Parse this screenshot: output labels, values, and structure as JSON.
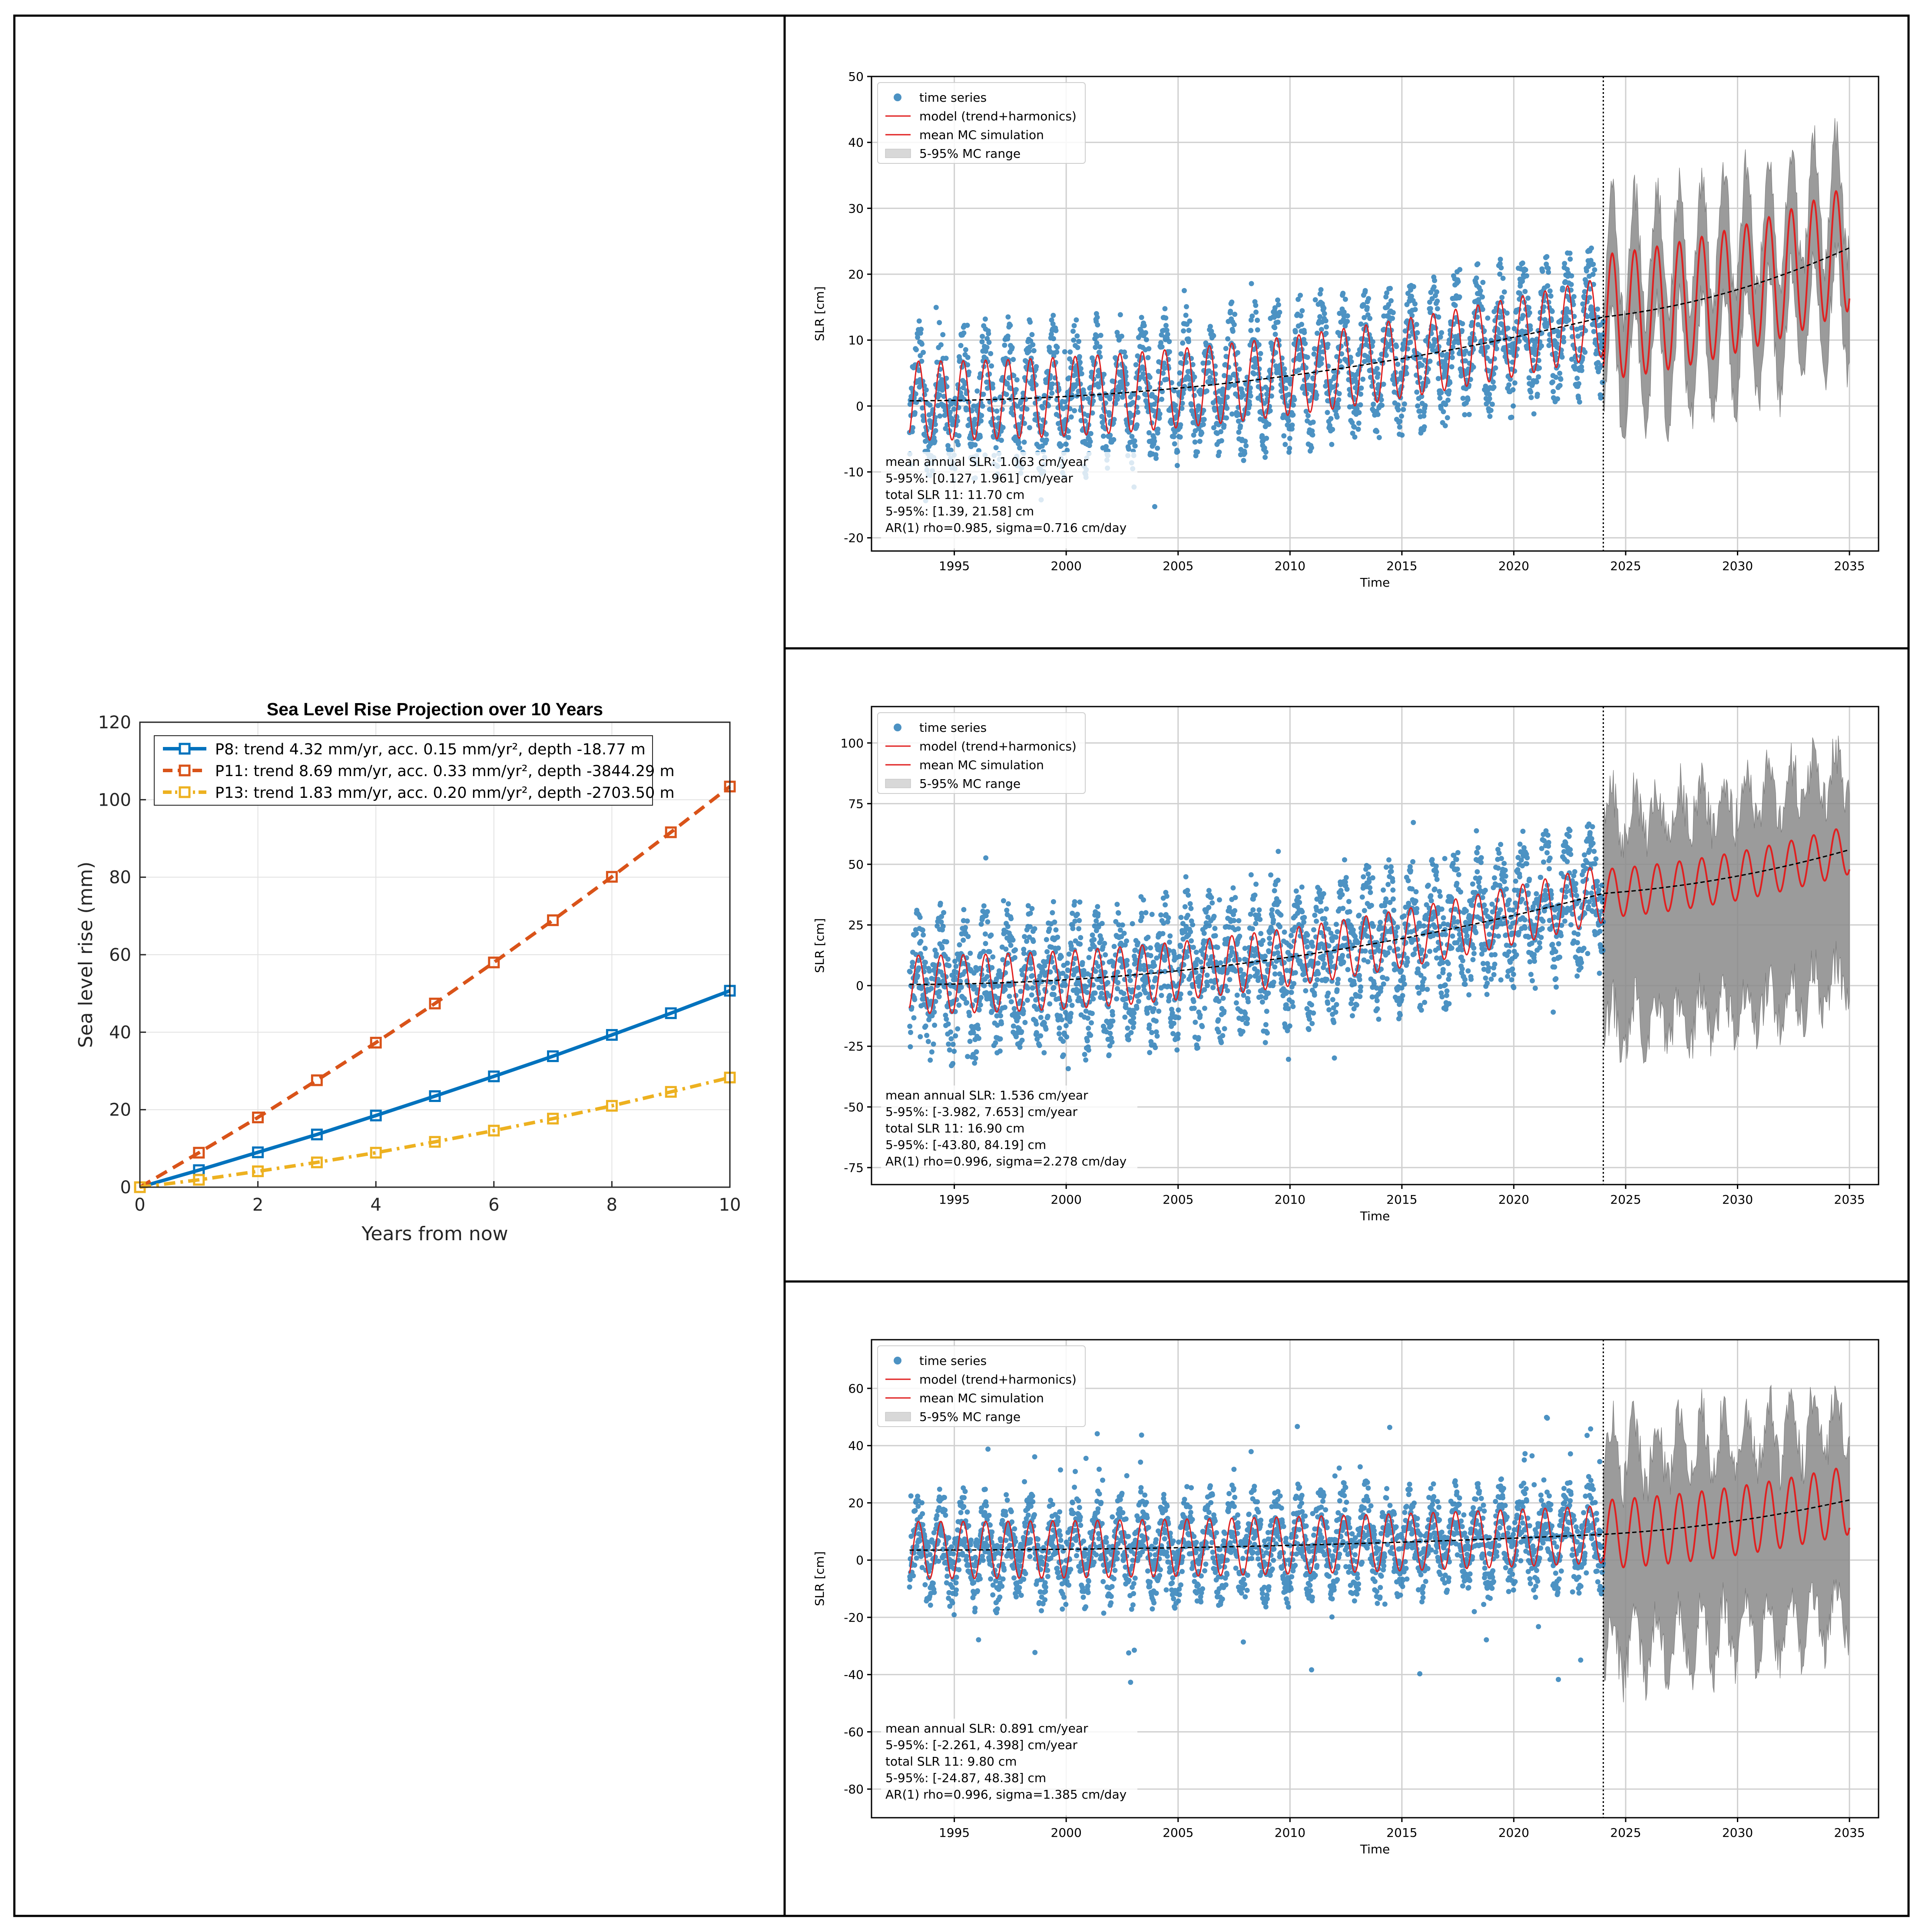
{
  "colors": {
    "frame": "#000000",
    "p8": "#0072BD",
    "p11": "#D95319",
    "p13": "#EDB120",
    "ts": "#1f77b4",
    "model": "#e02020",
    "mc_band": "#8a8a8a",
    "trend": "#000000",
    "grid": "#d0d0d0"
  },
  "chart_data": [
    {
      "id": "projection",
      "type": "line",
      "title": "Sea Level Rise Projection over 10 Years",
      "xlabel": "Years from now",
      "ylabel": "Sea level rise (mm)",
      "xlim": [
        0,
        10
      ],
      "ylim": [
        0,
        120
      ],
      "xticks": [
        0,
        2,
        4,
        6,
        8,
        10
      ],
      "yticks": [
        0,
        20,
        40,
        60,
        80,
        100,
        120
      ],
      "grid": true,
      "legend_position": "top-left",
      "x": [
        0,
        1,
        2,
        3,
        4,
        5,
        6,
        7,
        8,
        9,
        10
      ],
      "series": [
        {
          "name": "P8: trend 4.32 mm/yr, acc. 0.15 mm/yr², depth -18.77 m",
          "key": "p8",
          "style": "solid",
          "values": [
            0,
            4.4,
            9.0,
            13.6,
            18.5,
            23.5,
            28.6,
            33.8,
            39.3,
            44.9,
            50.7
          ]
        },
        {
          "name": "P11: trend 8.69 mm/yr, acc. 0.33 mm/yr², depth -3844.29 m",
          "key": "p11",
          "style": "dashed",
          "values": [
            0,
            8.9,
            18.0,
            27.6,
            37.3,
            47.4,
            58.0,
            68.9,
            80.1,
            91.6,
            103.4
          ]
        },
        {
          "name": "P13: trend 1.83 mm/yr, acc. 0.20 mm/yr², depth -2703.50 m",
          "key": "p13",
          "style": "dashdot",
          "values": [
            0,
            1.9,
            4.1,
            6.4,
            8.9,
            11.7,
            14.6,
            17.7,
            21.0,
            24.6,
            28.3
          ]
        }
      ]
    },
    {
      "id": "p8_ts",
      "type": "line",
      "xlabel": "Time",
      "ylabel": "SLR [cm]",
      "xlim": [
        1991.3,
        2036.3
      ],
      "ylim": [
        -22,
        50
      ],
      "xticks": [
        1995,
        2000,
        2005,
        2010,
        2015,
        2020,
        2025,
        2030,
        2035
      ],
      "yticks": [
        -20,
        -10,
        0,
        10,
        20,
        30,
        40,
        50
      ],
      "grid": true,
      "legend_position": "top-left",
      "legend": [
        "time series",
        "model (trend+harmonics)",
        "mean MC simulation",
        "5-95% MC range"
      ],
      "forecast_start": 2024.0,
      "end_year": 2035,
      "obs": {
        "start": 1993.0,
        "trend_start": 0.8,
        "trend_end": 13.5,
        "amp": 6.5,
        "noise": 6.0,
        "spike": 10
      },
      "model": {
        "amp": 6.0
      },
      "mc": {
        "mean_start": 13.5,
        "mean_end": 24.0,
        "amp": 9.5,
        "lower_width": 9.0,
        "upper_width": 9.0,
        "jitter": 3.0
      },
      "stats": [
        "mean annual SLR: 1.063 cm/year",
        "5-95%: [0.127, 1.961] cm/year",
        "total SLR 11: 11.70 cm",
        "5-95%: [1.39, 21.58] cm",
        "AR(1) rho=0.985, sigma=0.716 cm/day"
      ]
    },
    {
      "id": "p11_ts",
      "type": "line",
      "xlabel": "Time",
      "ylabel": "SLR [cm]",
      "xlim": [
        1991.3,
        2036.3
      ],
      "ylim": [
        -82,
        115
      ],
      "xticks": [
        1995,
        2000,
        2005,
        2010,
        2015,
        2020,
        2025,
        2030,
        2035
      ],
      "yticks": [
        -75,
        -50,
        -25,
        0,
        25,
        50,
        75,
        100
      ],
      "grid": true,
      "legend_position": "top-left",
      "legend": [
        "time series",
        "model (trend+harmonics)",
        "mean MC simulation",
        "5-95% MC range"
      ],
      "forecast_start": 2024.0,
      "end_year": 2035,
      "obs": {
        "start": 1993.0,
        "trend_start": 0.5,
        "trend_end": 38.0,
        "amp": 14.0,
        "noise": 20.0,
        "spike": 30
      },
      "model": {
        "amp": 12.0
      },
      "mc": {
        "mean_start": 38.0,
        "mean_end": 56.0,
        "amp": 10.0,
        "lower_width": 55.0,
        "upper_width": 32.0,
        "jitter": 10.0
      },
      "stats": [
        "mean annual SLR: 1.536 cm/year",
        "5-95%: [-3.982, 7.653] cm/year",
        "total SLR 11: 16.90 cm",
        "5-95%: [-43.80, 84.19] cm",
        "AR(1) rho=0.996, sigma=2.278 cm/day"
      ]
    },
    {
      "id": "p13_ts",
      "type": "line",
      "xlabel": "Time",
      "ylabel": "SLR [cm]",
      "xlim": [
        1991.3,
        2036.3
      ],
      "ylim": [
        -90,
        77
      ],
      "xticks": [
        1995,
        2000,
        2005,
        2010,
        2015,
        2020,
        2025,
        2030,
        2035
      ],
      "yticks": [
        -80,
        -60,
        -40,
        -20,
        0,
        20,
        40,
        60
      ],
      "grid": true,
      "legend_position": "top-left",
      "legend": [
        "time series",
        "model (trend+harmonics)",
        "mean MC simulation",
        "5-95% MC range"
      ],
      "forecast_start": 2024.0,
      "end_year": 2035,
      "obs": {
        "start": 1993.0,
        "trend_start": 3.5,
        "trend_end": 9.0,
        "amp": 10.0,
        "noise": 12.0,
        "spike": 35
      },
      "model": {
        "amp": 10.0
      },
      "mc": {
        "mean_start": 9.0,
        "mean_end": 21.0,
        "amp": 12.0,
        "lower_width": 40.0,
        "upper_width": 28.0,
        "jitter": 8.0
      },
      "stats": [
        "mean annual SLR: 0.891 cm/year",
        "5-95%: [-2.261, 4.398] cm/year",
        "total SLR 11: 9.80 cm",
        "5-95%: [-24.87, 48.38] cm",
        "AR(1) rho=0.996, sigma=1.385 cm/day"
      ]
    }
  ]
}
